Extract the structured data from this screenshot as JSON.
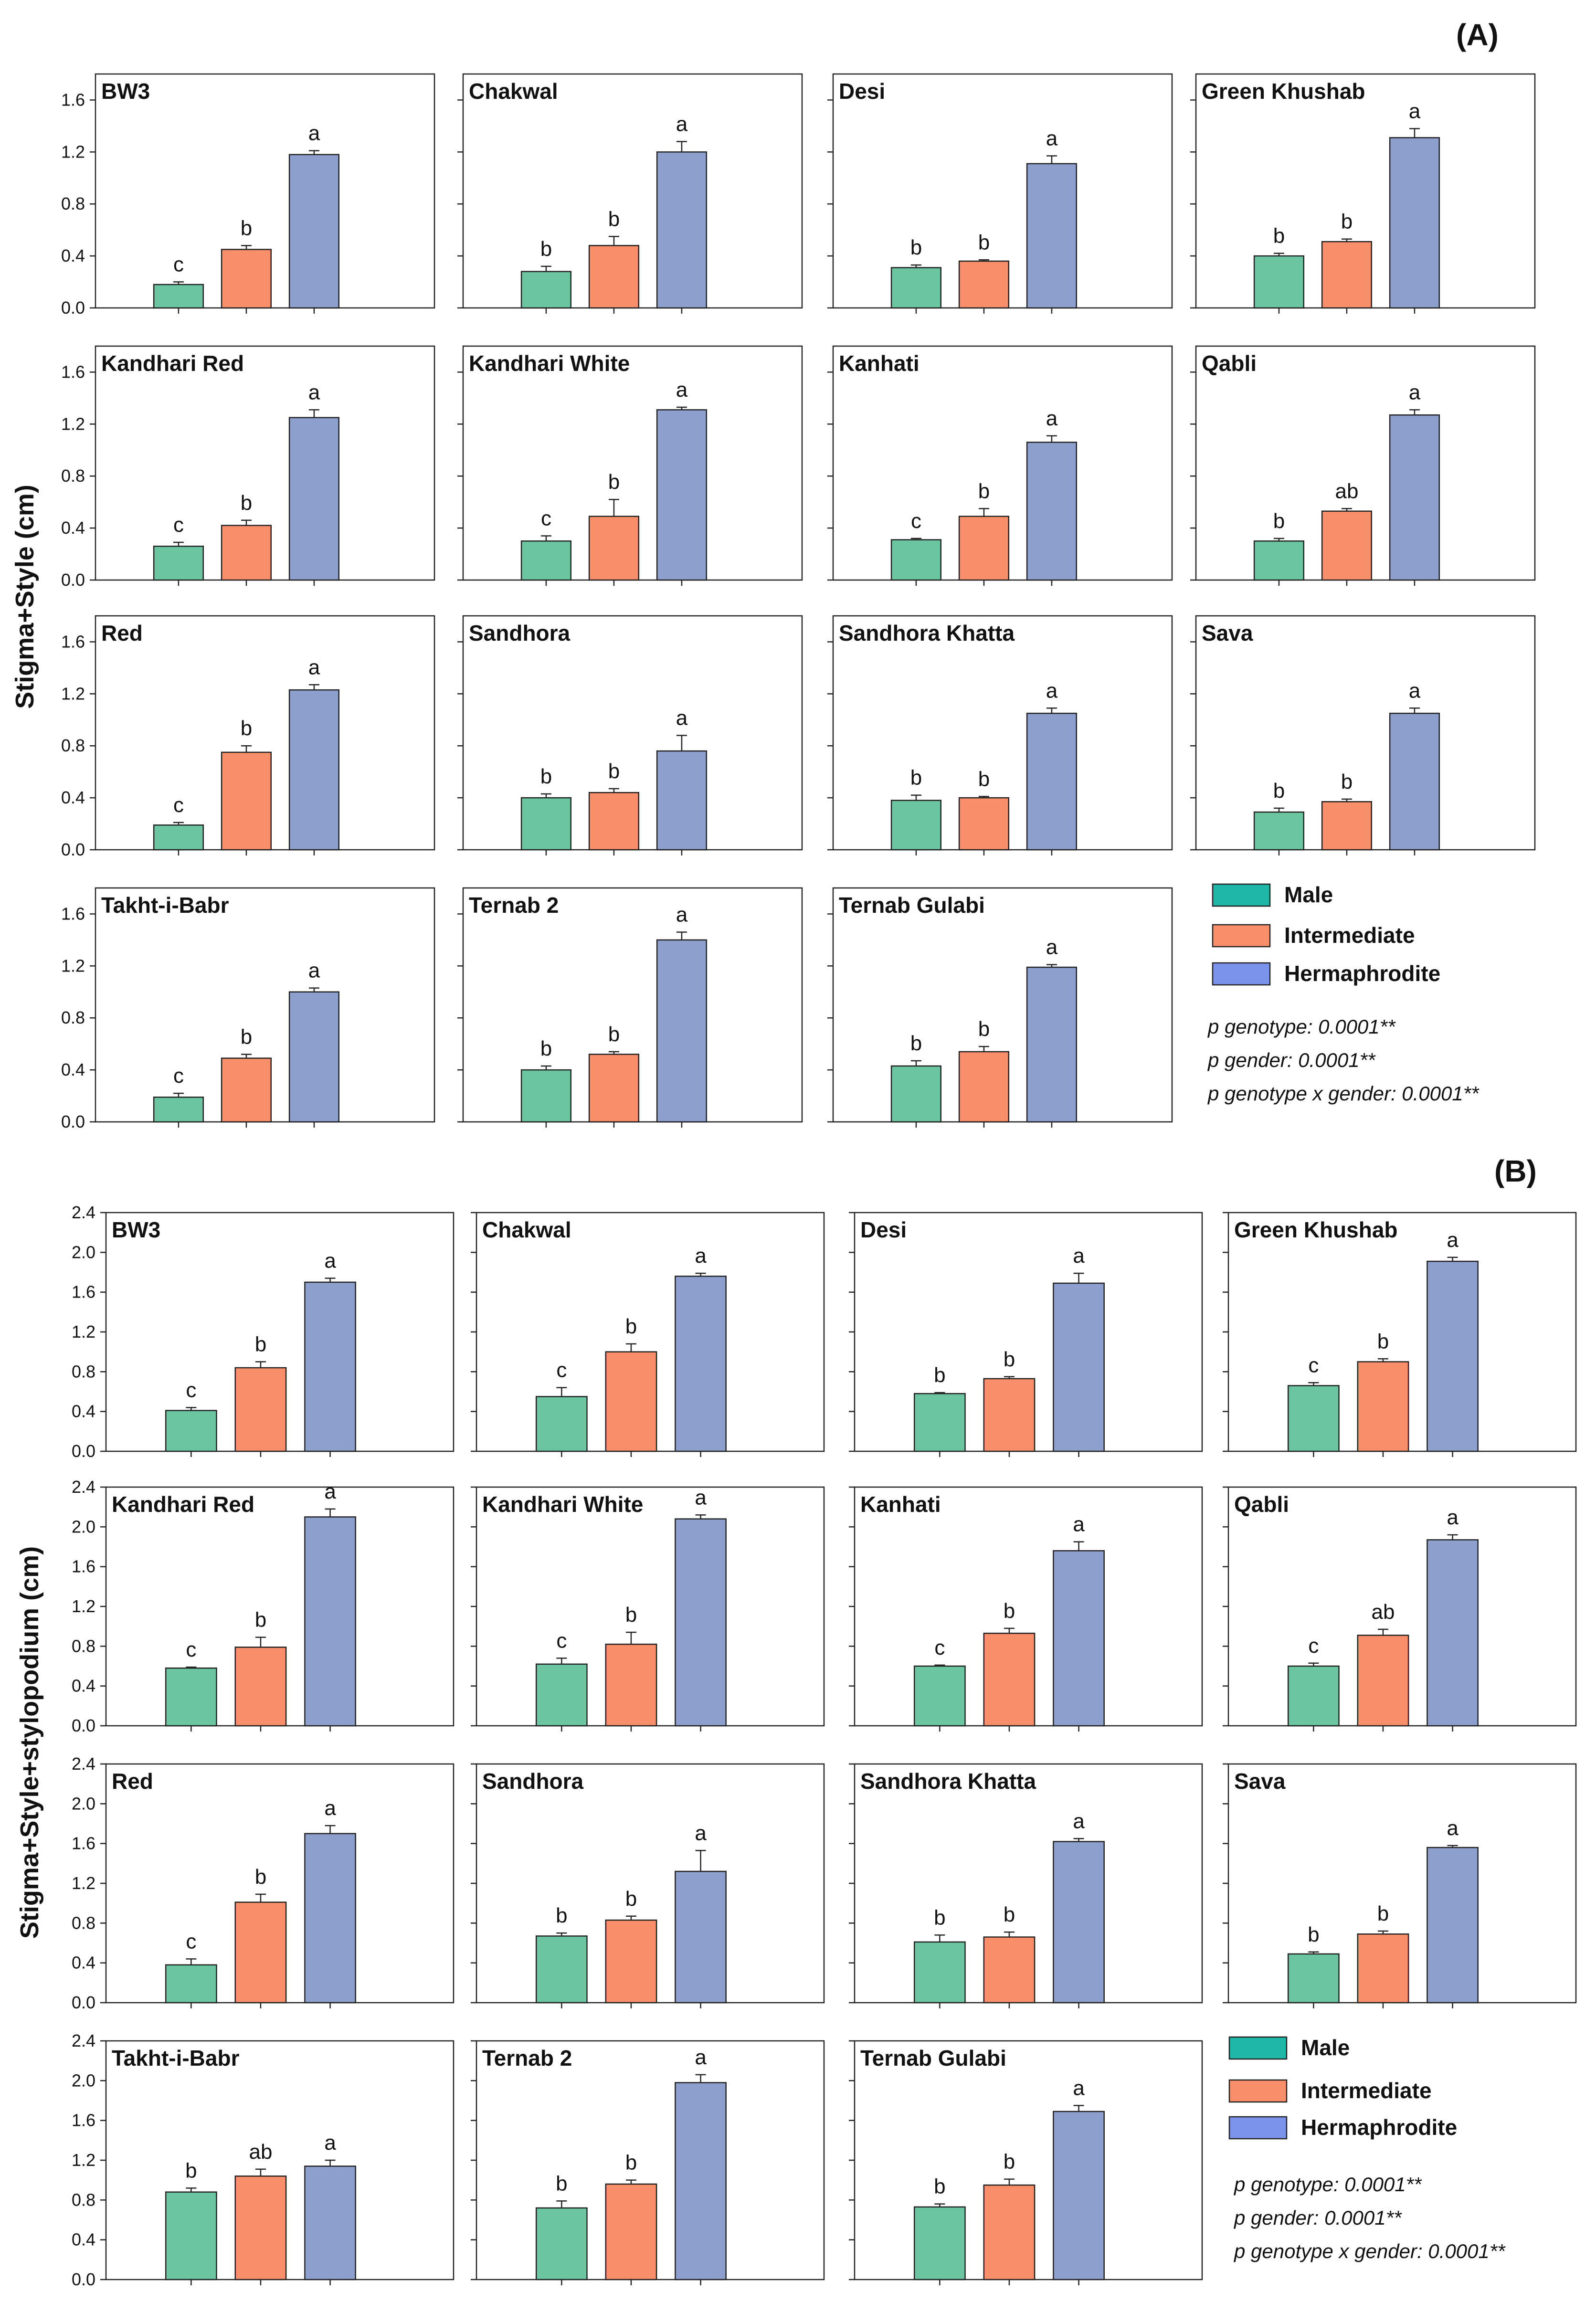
{
  "legend": {
    "male": "Male",
    "intermediate": "Intermediate",
    "hermaphrodite": "Hermaphrodite"
  },
  "colors": {
    "male": "#6cc5a1",
    "intermediate": "#f88e6a",
    "hermaphrodite": "#8d9fcd",
    "legend_male": "#1fb7a8",
    "legend_intermediate": "#f88e6a",
    "legend_hermaphrodite": "#7b93ea"
  },
  "chart_data": [
    {
      "section_label": "(A)",
      "type": "bar",
      "ylabel": "Stigma+Style (cm)",
      "ylim": [
        0,
        1.8
      ],
      "yticks": [
        "0.0",
        "0.4",
        "0.8",
        "1.2",
        "1.6"
      ],
      "categories": [
        "Male",
        "Intermediate",
        "Hermaphrodite"
      ],
      "stats": [
        "p genotype: 0.0001**",
        "p gender: 0.0001**",
        "p genotype x gender: 0.0001**"
      ],
      "panels": [
        {
          "title": "BW3",
          "values": [
            0.18,
            0.45,
            1.18
          ],
          "errors": [
            0.02,
            0.03,
            0.03
          ],
          "letters": [
            "c",
            "b",
            "a"
          ]
        },
        {
          "title": "Chakwal",
          "values": [
            0.28,
            0.48,
            1.2
          ],
          "errors": [
            0.04,
            0.07,
            0.08
          ],
          "letters": [
            "b",
            "b",
            "a"
          ]
        },
        {
          "title": "Desi",
          "values": [
            0.31,
            0.36,
            1.11
          ],
          "errors": [
            0.02,
            0.01,
            0.06
          ],
          "letters": [
            "b",
            "b",
            "a"
          ]
        },
        {
          "title": "Green Khushab",
          "values": [
            0.4,
            0.51,
            1.31
          ],
          "errors": [
            0.02,
            0.02,
            0.07
          ],
          "letters": [
            "b",
            "b",
            "a"
          ]
        },
        {
          "title": "Kandhari Red",
          "values": [
            0.26,
            0.42,
            1.25
          ],
          "errors": [
            0.03,
            0.04,
            0.06
          ],
          "letters": [
            "c",
            "b",
            "a"
          ]
        },
        {
          "title": "Kandhari White",
          "values": [
            0.3,
            0.49,
            1.31
          ],
          "errors": [
            0.04,
            0.13,
            0.02
          ],
          "letters": [
            "c",
            "b",
            "a"
          ]
        },
        {
          "title": "Kanhati",
          "values": [
            0.31,
            0.49,
            1.06
          ],
          "errors": [
            0.01,
            0.06,
            0.05
          ],
          "letters": [
            "c",
            "b",
            "a"
          ]
        },
        {
          "title": "Qabli",
          "values": [
            0.3,
            0.53,
            1.27
          ],
          "errors": [
            0.02,
            0.02,
            0.04
          ],
          "letters": [
            "b",
            "ab",
            "a"
          ]
        },
        {
          "title": "Red",
          "values": [
            0.19,
            0.75,
            1.23
          ],
          "errors": [
            0.02,
            0.05,
            0.04
          ],
          "letters": [
            "c",
            "b",
            "a"
          ]
        },
        {
          "title": "Sandhora",
          "values": [
            0.4,
            0.44,
            0.76
          ],
          "errors": [
            0.03,
            0.03,
            0.12
          ],
          "letters": [
            "b",
            "b",
            "a"
          ]
        },
        {
          "title": "Sandhora Khatta",
          "values": [
            0.38,
            0.4,
            1.05
          ],
          "errors": [
            0.04,
            0.01,
            0.04
          ],
          "letters": [
            "b",
            "b",
            "a"
          ]
        },
        {
          "title": "Sava",
          "values": [
            0.29,
            0.37,
            1.05
          ],
          "errors": [
            0.03,
            0.02,
            0.04
          ],
          "letters": [
            "b",
            "b",
            "a"
          ]
        },
        {
          "title": "Takht-i-Babr",
          "values": [
            0.19,
            0.49,
            1.0
          ],
          "errors": [
            0.03,
            0.03,
            0.03
          ],
          "letters": [
            "c",
            "b",
            "a"
          ]
        },
        {
          "title": "Ternab 2",
          "values": [
            0.4,
            0.52,
            1.4
          ],
          "errors": [
            0.03,
            0.02,
            0.06
          ],
          "letters": [
            "b",
            "b",
            "a"
          ]
        },
        {
          "title": "Ternab Gulabi",
          "values": [
            0.43,
            0.54,
            1.19
          ],
          "errors": [
            0.04,
            0.04,
            0.02
          ],
          "letters": [
            "b",
            "b",
            "a"
          ]
        }
      ]
    },
    {
      "section_label": "(B)",
      "type": "bar",
      "ylabel": "Stigma+Style+stylopodium (cm)",
      "ylim": [
        0,
        2.4
      ],
      "yticks": [
        "0.0",
        "0.4",
        "0.8",
        "1.2",
        "1.6",
        "2.0",
        "2.4"
      ],
      "categories": [
        "Male",
        "Intermediate",
        "Hermaphrodite"
      ],
      "stats": [
        "p genotype: 0.0001**",
        "p gender: 0.0001**",
        "p genotype x gender: 0.0001**"
      ],
      "panels": [
        {
          "title": "BW3",
          "values": [
            0.41,
            0.84,
            1.7
          ],
          "errors": [
            0.03,
            0.06,
            0.04
          ],
          "letters": [
            "c",
            "b",
            "a"
          ]
        },
        {
          "title": "Chakwal",
          "values": [
            0.55,
            1.0,
            1.76
          ],
          "errors": [
            0.09,
            0.08,
            0.03
          ],
          "letters": [
            "c",
            "b",
            "a"
          ]
        },
        {
          "title": "Desi",
          "values": [
            0.58,
            0.73,
            1.69
          ],
          "errors": [
            0.01,
            0.02,
            0.1
          ],
          "letters": [
            "b",
            "b",
            "a"
          ]
        },
        {
          "title": "Green Khushab",
          "values": [
            0.66,
            0.9,
            1.91
          ],
          "errors": [
            0.03,
            0.03,
            0.04
          ],
          "letters": [
            "c",
            "b",
            "a"
          ]
        },
        {
          "title": "Kandhari Red",
          "values": [
            0.58,
            0.79,
            2.1
          ],
          "errors": [
            0.01,
            0.1,
            0.08
          ],
          "letters": [
            "c",
            "b",
            "a"
          ]
        },
        {
          "title": "Kandhari White",
          "values": [
            0.62,
            0.82,
            2.08
          ],
          "errors": [
            0.06,
            0.12,
            0.04
          ],
          "letters": [
            "c",
            "b",
            "a"
          ]
        },
        {
          "title": "Kanhati",
          "values": [
            0.6,
            0.93,
            1.76
          ],
          "errors": [
            0.01,
            0.05,
            0.09
          ],
          "letters": [
            "c",
            "b",
            "a"
          ]
        },
        {
          "title": "Qabli",
          "values": [
            0.6,
            0.91,
            1.87
          ],
          "errors": [
            0.03,
            0.06,
            0.05
          ],
          "letters": [
            "c",
            "ab",
            "a"
          ]
        },
        {
          "title": "Red",
          "values": [
            0.38,
            1.01,
            1.7
          ],
          "errors": [
            0.06,
            0.08,
            0.08
          ],
          "letters": [
            "c",
            "b",
            "a"
          ]
        },
        {
          "title": "Sandhora",
          "values": [
            0.67,
            0.83,
            1.32
          ],
          "errors": [
            0.03,
            0.04,
            0.21
          ],
          "letters": [
            "b",
            "b",
            "a"
          ]
        },
        {
          "title": "Sandhora Khatta",
          "values": [
            0.61,
            0.66,
            1.62
          ],
          "errors": [
            0.07,
            0.05,
            0.03
          ],
          "letters": [
            "b",
            "b",
            "a"
          ]
        },
        {
          "title": "Sava",
          "values": [
            0.49,
            0.69,
            1.56
          ],
          "errors": [
            0.02,
            0.03,
            0.02
          ],
          "letters": [
            "b",
            "b",
            "a"
          ]
        },
        {
          "title": "Takht-i-Babr",
          "values": [
            0.88,
            1.04,
            1.14
          ],
          "errors": [
            0.04,
            0.07,
            0.06
          ],
          "letters": [
            "b",
            "ab",
            "a"
          ]
        },
        {
          "title": "Ternab 2",
          "values": [
            0.72,
            0.96,
            1.98
          ],
          "errors": [
            0.07,
            0.04,
            0.08
          ],
          "letters": [
            "b",
            "b",
            "a"
          ]
        },
        {
          "title": "Ternab Gulabi",
          "values": [
            0.73,
            0.95,
            1.69
          ],
          "errors": [
            0.03,
            0.06,
            0.06
          ],
          "letters": [
            "b",
            "b",
            "a"
          ]
        }
      ]
    }
  ]
}
